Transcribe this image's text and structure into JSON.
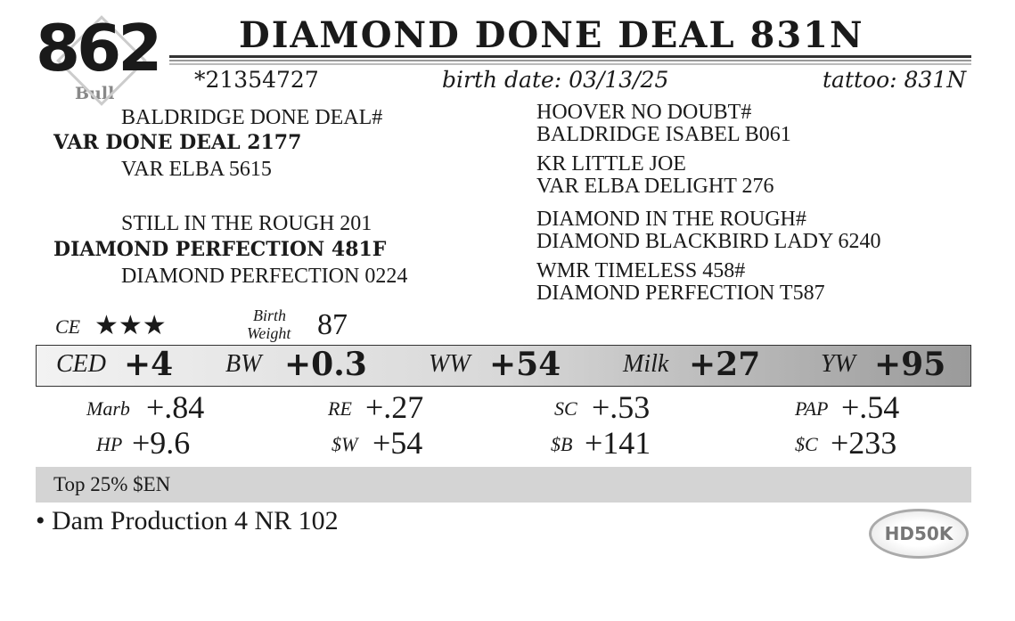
{
  "lot": {
    "number": "862",
    "sex": "Bull"
  },
  "animal": {
    "name": "DIAMOND DONE DEAL 831N",
    "registration": "*21354727",
    "birth_date_label": "birth date:",
    "birth_date": "03/13/25",
    "tattoo_label": "tattoo:",
    "tattoo": "831N"
  },
  "pedigree": {
    "sire": "VAR DONE DEAL 2177",
    "sire_sire": "BALDRIDGE DONE DEAL#",
    "sire_dam": "VAR ELBA 5615",
    "dam": "DIAMOND PERFECTION 481F",
    "dam_sire": "STILL IN THE ROUGH 201",
    "dam_dam": "DIAMOND PERFECTION 0224",
    "right": [
      "HOOVER NO DOUBT#",
      "BALDRIDGE ISABEL B061",
      "KR LITTLE JOE",
      "VAR ELBA DELIGHT 276",
      "DIAMOND IN THE ROUGH#",
      "DIAMOND BLACKBIRD LADY 6240",
      "WMR TIMELESS 458#",
      "DIAMOND PERFECTION T587"
    ]
  },
  "ce": {
    "label": "CE",
    "stars": 3,
    "stars_text": "★★★"
  },
  "birth_weight": {
    "label1": "Birth",
    "label2": "Weight",
    "value": "87"
  },
  "epds": [
    {
      "label": "CED",
      "value": "+4"
    },
    {
      "label": "BW",
      "value": "+0.3"
    },
    {
      "label": "WW",
      "value": "+54"
    },
    {
      "label": "Milk",
      "value": "+27"
    },
    {
      "label": "YW",
      "value": "+95"
    }
  ],
  "secondary": [
    {
      "label": "Marb",
      "value": "+.84"
    },
    {
      "label": "RE",
      "value": "+.27"
    },
    {
      "label": "SC",
      "value": "+.53"
    },
    {
      "label": "PAP",
      "value": "+.54"
    },
    {
      "label": "HP",
      "value": "+9.6"
    },
    {
      "label": "$W",
      "value": "+54"
    },
    {
      "label": "$B",
      "value": "+141"
    },
    {
      "label": "$C",
      "value": "+233"
    }
  ],
  "highlight": "Top 25% $EN",
  "notes": [
    "• Dam Production 4 NR 102"
  ],
  "logo": "HD50K"
}
